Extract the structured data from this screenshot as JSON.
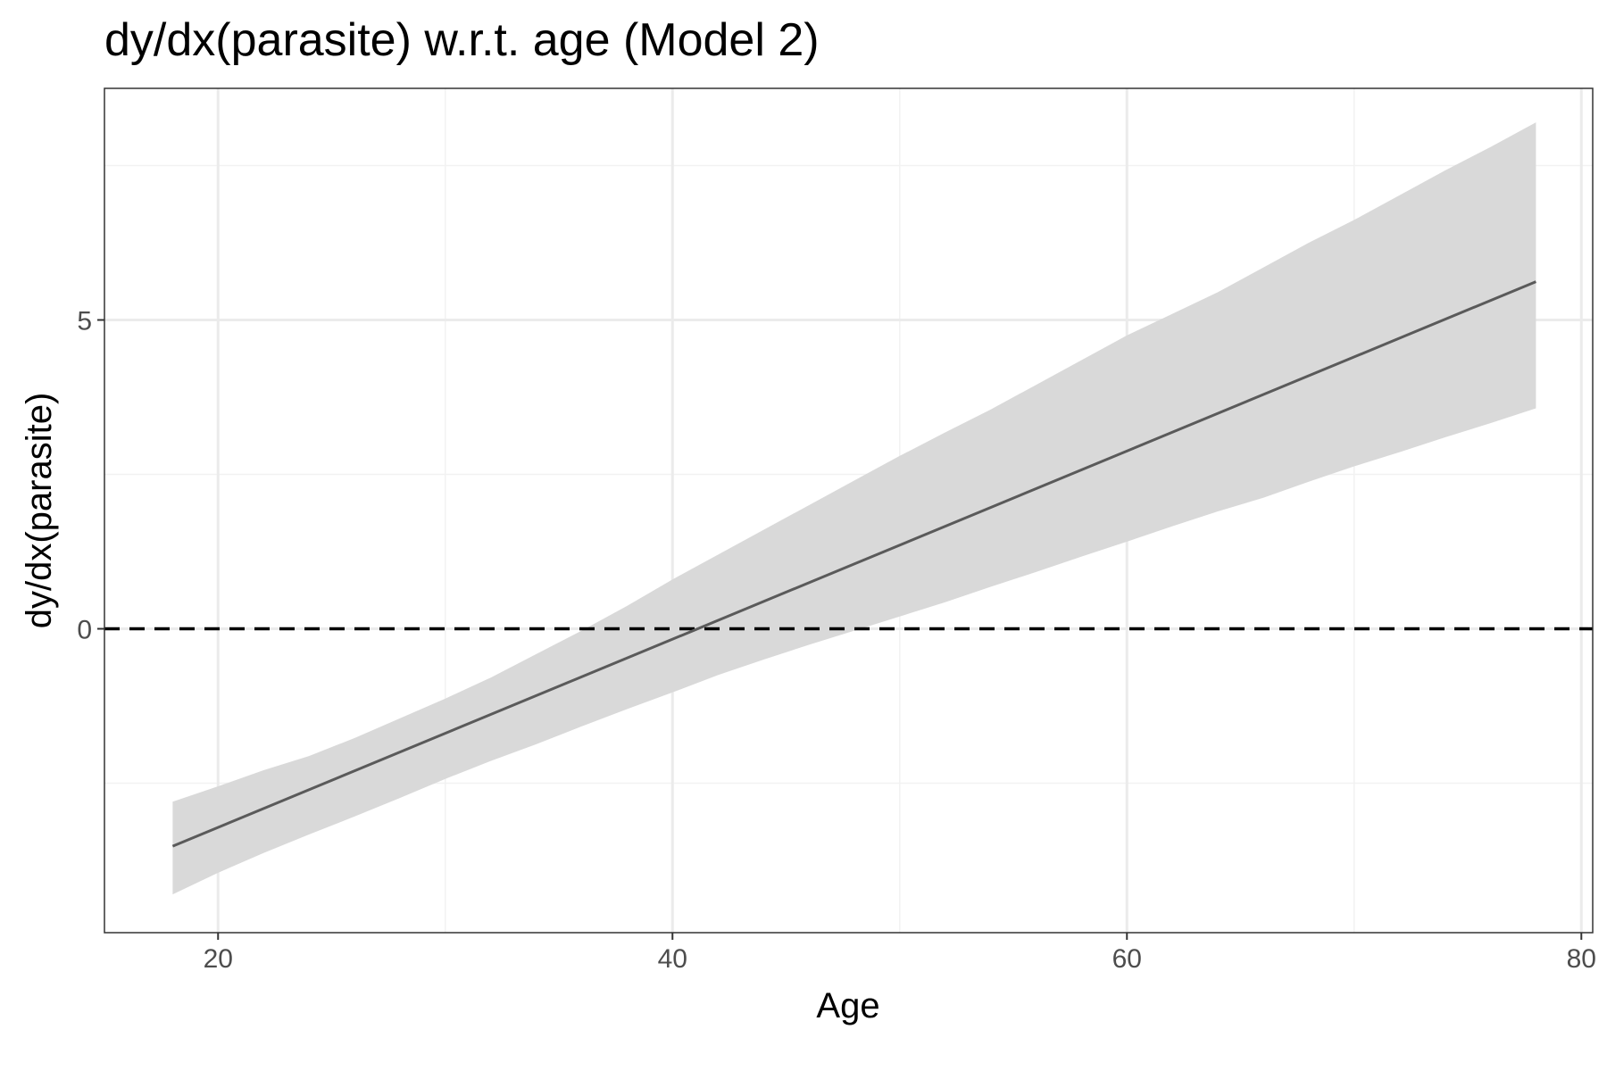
{
  "chart_data": {
    "type": "line",
    "title": "dy/dx(parasite) w.r.t. age  (Model 2)",
    "xlabel": "Age",
    "ylabel": "dy/dx(parasite)",
    "xlim": [
      15,
      80.5
    ],
    "ylim": [
      -4.92,
      8.75
    ],
    "x_ticks": [
      20,
      40,
      60,
      80
    ],
    "x_tick_labels": [
      "20",
      "40",
      "60",
      "80"
    ],
    "y_ticks": [
      0,
      5
    ],
    "y_tick_labels": [
      "0",
      "5"
    ],
    "y_minor": [
      -2.5,
      2.5,
      7.5
    ],
    "x_minor": [
      30,
      50,
      70
    ],
    "grid": true,
    "reference_line": {
      "y": 0,
      "style": "dashed"
    },
    "series": [
      {
        "x": [
          18,
          78
        ],
        "y": [
          -3.52,
          5.62
        ]
      }
    ],
    "band": {
      "x": [
        18,
        20,
        22,
        24,
        26,
        28,
        30,
        32,
        34,
        36,
        38,
        40,
        42,
        44,
        46,
        48,
        50,
        52,
        54,
        56,
        58,
        60,
        62,
        64,
        66,
        68,
        70,
        72,
        74,
        76,
        78
      ],
      "upper": [
        -2.8,
        -2.55,
        -2.29,
        -2.06,
        -1.77,
        -1.45,
        -1.13,
        -0.79,
        -0.41,
        -0.03,
        0.37,
        0.8,
        1.2,
        1.6,
        2.0,
        2.4,
        2.8,
        3.18,
        3.55,
        3.95,
        4.35,
        4.75,
        5.1,
        5.45,
        5.85,
        6.25,
        6.62,
        7.02,
        7.42,
        7.8,
        8.2
      ],
      "lower": [
        -4.3,
        -3.95,
        -3.63,
        -3.33,
        -3.04,
        -2.74,
        -2.43,
        -2.14,
        -1.87,
        -1.58,
        -1.3,
        -1.03,
        -0.75,
        -0.5,
        -0.26,
        -0.03,
        0.2,
        0.43,
        0.68,
        0.92,
        1.17,
        1.41,
        1.66,
        1.9,
        2.12,
        2.38,
        2.63,
        2.86,
        3.1,
        3.33,
        3.57
      ]
    },
    "colors": {
      "line": "#5a5a5a",
      "band": "#d9d9d9",
      "grid_major": "#ebebeb",
      "grid_minor": "#f2f2f2",
      "panel_border": "#333333",
      "reference": "#000000"
    }
  }
}
